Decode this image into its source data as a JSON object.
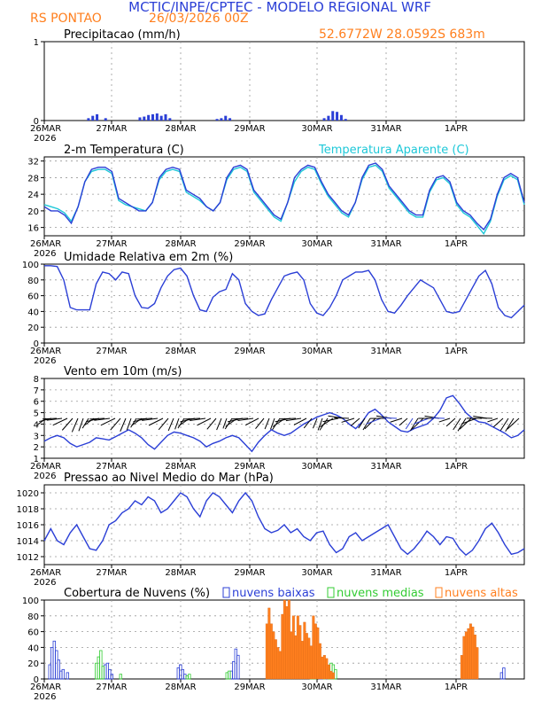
{
  "header": {
    "title": "MCTIC/INPE/CPTEC - MODELO REGIONAL WRF",
    "station": "RS PONTAO",
    "run": "26/03/2026 00Z",
    "coords": "52.6772W 28.0592S 683m"
  },
  "colors": {
    "blue": "#2b3fd6",
    "cyan": "#1ec8d8",
    "green": "#33cc33",
    "orange": "#ff7f1e",
    "title": "#2b3fd6",
    "orange_text": "#ff7f1e"
  },
  "xaxis": {
    "labels": [
      "26MAR",
      "27MAR",
      "28MAR",
      "29MAR",
      "30MAR",
      "31MAR",
      "1APR"
    ],
    "year": "2026"
  },
  "chart_data": [
    {
      "type": "bar",
      "title": "Precipitacao (mm/h)",
      "ylim": [
        0,
        1
      ],
      "yticks": [
        "0",
        "1"
      ],
      "x_hours": [
        10,
        11,
        12,
        14,
        22,
        23,
        24,
        25,
        26,
        27,
        28,
        29,
        40,
        41,
        42,
        43,
        65,
        66,
        67,
        68,
        69,
        70
      ],
      "values": [
        0.03,
        0.06,
        0.08,
        0.03,
        0.04,
        0.05,
        0.07,
        0.08,
        0.09,
        0.06,
        0.08,
        0.03,
        0.02,
        0.03,
        0.06,
        0.03,
        0.03,
        0.06,
        0.12,
        0.11,
        0.07,
        0.02
      ],
      "series_color": "blue"
    },
    {
      "type": "line",
      "title": "2-m Temperatura (C)",
      "legend": "Temperatura Aparente (C)",
      "ylim": [
        14,
        33
      ],
      "yticks": [
        "16",
        "20",
        "24",
        "28",
        "32"
      ],
      "series": [
        {
          "name": "Temperatura",
          "color": "blue",
          "values": [
            21,
            20,
            20,
            19,
            17,
            21,
            27,
            30,
            30.5,
            30.5,
            29.5,
            23,
            22,
            21,
            20,
            20,
            22,
            28,
            30,
            30.5,
            30,
            25,
            24,
            23,
            21,
            20,
            22,
            28,
            30.5,
            31,
            30,
            25,
            23,
            21,
            19,
            18,
            22,
            28,
            30,
            31,
            30.5,
            27,
            24,
            22,
            20,
            19,
            22,
            28,
            31,
            31.5,
            30,
            26,
            24,
            22,
            20,
            19,
            19,
            25,
            28,
            28.5,
            27,
            22,
            20,
            19,
            17,
            15.5,
            18,
            24,
            28,
            29,
            28,
            22
          ]
        },
        {
          "name": "Temperatura Aparente",
          "color": "cyan",
          "values": [
            21.5,
            21,
            20.5,
            19.5,
            17.5,
            21,
            27,
            29.5,
            30,
            30,
            29,
            22.5,
            21.5,
            21,
            20.5,
            20,
            22,
            27.5,
            29.5,
            30,
            29.5,
            24.5,
            23.5,
            22.5,
            21,
            20,
            22,
            27.5,
            30,
            30.5,
            29.5,
            24.5,
            22.5,
            20.5,
            18.5,
            17.5,
            22,
            27,
            29.5,
            30.5,
            30,
            26.5,
            23.5,
            21.5,
            19.5,
            18.5,
            22,
            27.5,
            30.5,
            31,
            29.5,
            25.5,
            23.5,
            21.5,
            19.5,
            18.5,
            18.5,
            24.5,
            27.5,
            28,
            26.5,
            21.5,
            19.5,
            18.5,
            16.5,
            14.5,
            17.5,
            23.5,
            27.5,
            28.5,
            27.5,
            21.5
          ]
        }
      ]
    },
    {
      "type": "line",
      "title": "Umidade Relativa em 2m (%)",
      "ylim": [
        0,
        100
      ],
      "yticks": [
        "0",
        "20",
        "40",
        "60",
        "80",
        "100"
      ],
      "series": [
        {
          "name": "Umidade Relativa",
          "color": "blue",
          "values": [
            98,
            98,
            97,
            80,
            45,
            42,
            42,
            42,
            75,
            90,
            88,
            80,
            90,
            88,
            60,
            45,
            44,
            50,
            70,
            85,
            93,
            95,
            85,
            60,
            42,
            40,
            58,
            65,
            68,
            88,
            80,
            50,
            40,
            35,
            37,
            55,
            70,
            85,
            88,
            90,
            80,
            50,
            38,
            35,
            45,
            60,
            80,
            85,
            90,
            90,
            92,
            80,
            55,
            40,
            38,
            48,
            60,
            70,
            80,
            75,
            70,
            55,
            40,
            38,
            40,
            55,
            70,
            85,
            92,
            75,
            45,
            35,
            32,
            40,
            48
          ]
        }
      ]
    },
    {
      "type": "line",
      "title": "Vento em 10m (m/s)",
      "ylim": [
        1,
        8
      ],
      "yticks": [
        "1",
        "2",
        "3",
        "4",
        "5",
        "6",
        "7",
        "8"
      ],
      "series": [
        {
          "name": "Velocidade do vento",
          "color": "blue",
          "values": [
            2.5,
            2.8,
            3,
            2.8,
            2.3,
            2,
            2.2,
            2.4,
            2.8,
            2.7,
            2.6,
            2.9,
            3.2,
            3.5,
            3.2,
            2.8,
            2.2,
            1.8,
            2.4,
            3,
            3.3,
            3.2,
            3,
            2.8,
            2.5,
            2,
            2.3,
            2.5,
            2.8,
            3,
            2.8,
            2.2,
            1.6,
            2.4,
            3,
            3.5,
            3.2,
            3,
            3.2,
            3.6,
            4,
            4.3,
            4.6,
            4.8,
            5,
            4.8,
            4.5,
            4,
            3.6,
            4.2,
            5,
            5.3,
            4.8,
            4.2,
            3.8,
            3.4,
            3.3,
            3.6,
            3.8,
            4,
            4.5,
            5.2,
            6.3,
            6.5,
            5.8,
            5,
            4.5,
            4.2,
            4.1,
            3.8,
            3.5,
            3.2,
            2.8,
            3,
            3.5
          ]
        }
      ],
      "arrows_note": "wind barbs"
    },
    {
      "type": "line",
      "title": "Pressao ao Nivel Medio do Mar (hPa)",
      "ylim": [
        1011,
        1021
      ],
      "yticks": [
        "1012",
        "1014",
        "1016",
        "1018",
        "1020"
      ],
      "series": [
        {
          "name": "Pressao",
          "color": "blue",
          "values": [
            1014,
            1015.5,
            1014,
            1013.5,
            1015,
            1016,
            1014.5,
            1013,
            1012.8,
            1014,
            1016,
            1016.5,
            1017.5,
            1018,
            1019,
            1018.5,
            1019.5,
            1019,
            1017.5,
            1018,
            1019,
            1020,
            1019.5,
            1018,
            1017,
            1019,
            1020,
            1019.5,
            1018.5,
            1017.5,
            1019,
            1020,
            1019,
            1017,
            1015.5,
            1015,
            1015.3,
            1016,
            1015,
            1015.5,
            1014.5,
            1014,
            1015,
            1015.2,
            1013.5,
            1012.5,
            1013,
            1014.5,
            1015,
            1014,
            1014.5,
            1015,
            1015.5,
            1016,
            1014.5,
            1013,
            1012.3,
            1013,
            1014,
            1015.2,
            1014.5,
            1013.5,
            1014.5,
            1014.3,
            1013,
            1012.2,
            1012.8,
            1014,
            1015.5,
            1016.2,
            1015,
            1013.5,
            1012.3,
            1012.5,
            1013
          ]
        }
      ]
    },
    {
      "type": "bar",
      "title": "Cobertura de Nuvens (%)",
      "ylim": [
        0,
        100
      ],
      "yticks": [
        "0",
        "20",
        "40",
        "60",
        "80",
        "100"
      ],
      "legend": [
        "nuvens baixas",
        "nuvens medias",
        "nuvens altas"
      ],
      "series": [
        {
          "name": "nuvens baixas",
          "color": "blue",
          "bars": [
            [
              1,
              18
            ],
            [
              1.5,
              40
            ],
            [
              2,
              48
            ],
            [
              2.5,
              36
            ],
            [
              3,
              24
            ],
            [
              3.5,
              10
            ],
            [
              4,
              12
            ],
            [
              5,
              8
            ],
            [
              13.5,
              18
            ],
            [
              14,
              20
            ],
            [
              14.5,
              12
            ],
            [
              15,
              6
            ],
            [
              30,
              14
            ],
            [
              30.5,
              18
            ],
            [
              31,
              12
            ],
            [
              31.5,
              6
            ],
            [
              42,
              10
            ],
            [
              42.5,
              22
            ],
            [
              43,
              38
            ],
            [
              43.5,
              30
            ],
            [
              62,
              6
            ],
            [
              62.5,
              12
            ],
            [
              63,
              18
            ],
            [
              63.5,
              8
            ],
            [
              103,
              8
            ],
            [
              103.5,
              14
            ]
          ]
        },
        {
          "name": "nuvens medias",
          "color": "green",
          "bars": [
            [
              11.5,
              20
            ],
            [
              12,
              28
            ],
            [
              12.5,
              36
            ],
            [
              13,
              16
            ],
            [
              17,
              6
            ],
            [
              32,
              4
            ],
            [
              32.5,
              6
            ],
            [
              41,
              8
            ],
            [
              41.5,
              10
            ],
            [
              60,
              14
            ],
            [
              60.5,
              10
            ],
            [
              61,
              4
            ],
            [
              63,
              4
            ],
            [
              64,
              12
            ],
            [
              64.5,
              20
            ],
            [
              65,
              18
            ],
            [
              65.5,
              12
            ]
          ]
        },
        {
          "name": "nuvens altas",
          "color": "orange",
          "bars": [
            [
              50,
              70
            ],
            [
              50.5,
              90
            ],
            [
              51,
              70
            ],
            [
              51.5,
              60
            ],
            [
              52,
              50
            ],
            [
              52.5,
              40
            ],
            [
              53,
              35
            ],
            [
              53.5,
              82
            ],
            [
              54,
              100
            ],
            [
              54.5,
              92
            ],
            [
              55,
              100
            ],
            [
              55.5,
              60
            ],
            [
              56,
              80
            ],
            [
              56.5,
              55
            ],
            [
              57,
              80
            ],
            [
              57.5,
              68
            ],
            [
              58,
              48
            ],
            [
              58.5,
              72
            ],
            [
              59,
              58
            ],
            [
              59.5,
              52
            ],
            [
              60,
              42
            ],
            [
              60.5,
              80
            ],
            [
              61,
              70
            ],
            [
              61.5,
              65
            ],
            [
              62,
              45
            ],
            [
              62.5,
              28
            ],
            [
              63,
              30
            ],
            [
              63.5,
              26
            ],
            [
              64,
              18
            ],
            [
              64.5,
              10
            ],
            [
              65,
              8
            ],
            [
              94,
              30
            ],
            [
              94.5,
              54
            ],
            [
              95,
              60
            ],
            [
              95.5,
              64
            ],
            [
              96,
              70
            ],
            [
              96.5,
              66
            ],
            [
              97,
              56
            ],
            [
              97.5,
              40
            ]
          ]
        }
      ]
    }
  ]
}
